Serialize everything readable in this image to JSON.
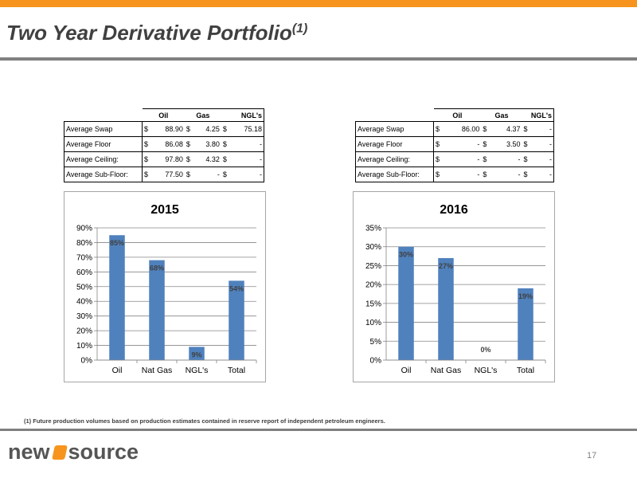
{
  "title": {
    "text": "Two Year Derivative Portfolio",
    "superscript": "(1)"
  },
  "tables": [
    {
      "headers": [
        "Oil",
        "Gas",
        "NGL's"
      ],
      "rows": [
        {
          "label": "Average Swap",
          "cells": [
            [
              "$",
              "88.90"
            ],
            [
              "$",
              "4.25"
            ],
            [
              "$",
              "75.18"
            ]
          ]
        },
        {
          "label": "Average Floor",
          "cells": [
            [
              "$",
              "86.08"
            ],
            [
              "$",
              "3.80"
            ],
            [
              "$",
              "-"
            ]
          ]
        },
        {
          "label": "Average Ceiling:",
          "cells": [
            [
              "$",
              "97.80"
            ],
            [
              "$",
              "4.32"
            ],
            [
              "$",
              "-"
            ]
          ]
        },
        {
          "label": "Average Sub-Floor:",
          "cells": [
            [
              "$",
              "77.50"
            ],
            [
              "$",
              "-"
            ],
            [
              "$",
              "-"
            ]
          ]
        }
      ]
    },
    {
      "headers": [
        "Oil",
        "Gas",
        "NGL's"
      ],
      "rows": [
        {
          "label": "Average Swap",
          "cells": [
            [
              "$",
              "86.00"
            ],
            [
              "$",
              "4.37"
            ],
            [
              "$",
              "-"
            ]
          ]
        },
        {
          "label": "Average Floor",
          "cells": [
            [
              "$",
              "-"
            ],
            [
              "$",
              "3.50"
            ],
            [
              "$",
              "-"
            ]
          ]
        },
        {
          "label": "Average Ceiling:",
          "cells": [
            [
              "$",
              "-"
            ],
            [
              "$",
              "-"
            ],
            [
              "$",
              "-"
            ]
          ]
        },
        {
          "label": "Average Sub-Floor:",
          "cells": [
            [
              "$",
              "-"
            ],
            [
              "$",
              "-"
            ],
            [
              "$",
              "-"
            ]
          ]
        }
      ]
    }
  ],
  "chart_data": [
    {
      "type": "bar",
      "title": "2015",
      "categories": [
        "Oil",
        "Nat Gas",
        "NGL's",
        "Total"
      ],
      "values": [
        85,
        68,
        9,
        54
      ],
      "data_labels": [
        "85%",
        "68%",
        "9%",
        "54%"
      ],
      "ylim": [
        0,
        90
      ],
      "yticks": [
        "0%",
        "10%",
        "20%",
        "30%",
        "40%",
        "50%",
        "60%",
        "70%",
        "80%",
        "90%"
      ],
      "grid": true,
      "bar_color": "#4f81bd"
    },
    {
      "type": "bar",
      "title": "2016",
      "categories": [
        "Oil",
        "Nat Gas",
        "NGL's",
        "Total"
      ],
      "values": [
        30,
        27,
        0,
        19
      ],
      "data_labels": [
        "30%",
        "27%",
        "0%",
        "19%"
      ],
      "ylim": [
        0,
        35
      ],
      "yticks": [
        "0%",
        "5%",
        "10%",
        "15%",
        "20%",
        "25%",
        "30%",
        "35%"
      ],
      "grid": true,
      "bar_color": "#4f81bd"
    }
  ],
  "footnote": "(1) Future production volumes based on production estimates contained in reserve report of independent petroleum engineers.",
  "logo": {
    "left": "new",
    "right": "source"
  },
  "page_number": "17",
  "colors": {
    "accent": "#f7941d",
    "rule": "#808080",
    "bar": "#4f81bd"
  }
}
